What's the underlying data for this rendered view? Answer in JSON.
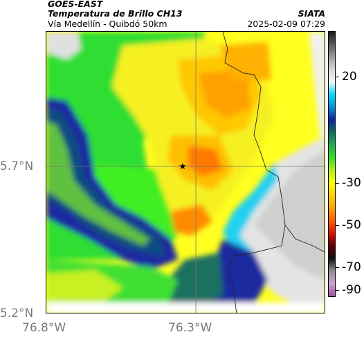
{
  "header": {
    "source": "GOES-EAST",
    "title": "Temperatura de Brillo CH13",
    "subtitle": "Vía Medellín - Quibdó 50km",
    "organization": "SIATA",
    "timestamp": "2025-02-09 07:29"
  },
  "map": {
    "lat_labels": [
      "5.7°N",
      "5.2°N"
    ],
    "lon_labels": [
      "76.8°W",
      "76.3°W"
    ],
    "marker": "star-icon",
    "gridlines": true
  },
  "colorbar": {
    "labels": [
      "20",
      "-30",
      "-50",
      "-70",
      "-90"
    ],
    "stops": [
      "#1a1a1a",
      "#5a5a5a",
      "#9a9a9a",
      "#d8d8d8",
      "#f4f4f4",
      "#00d8ff",
      "#0090d0",
      "#1020a0",
      "#107060",
      "#20b050",
      "#30e020",
      "#b0f020",
      "#ffff00",
      "#ffd000",
      "#ffa000",
      "#ff6000",
      "#e01000",
      "#600000",
      "#101010",
      "#909090",
      "#d0a0d0",
      "#a050a0"
    ]
  },
  "colors": {
    "cold_cloud": "#ff6000",
    "convective": "#ffd000",
    "mid": "#30e020",
    "warm": "#1020a0",
    "clear": "#e8e8e8"
  }
}
